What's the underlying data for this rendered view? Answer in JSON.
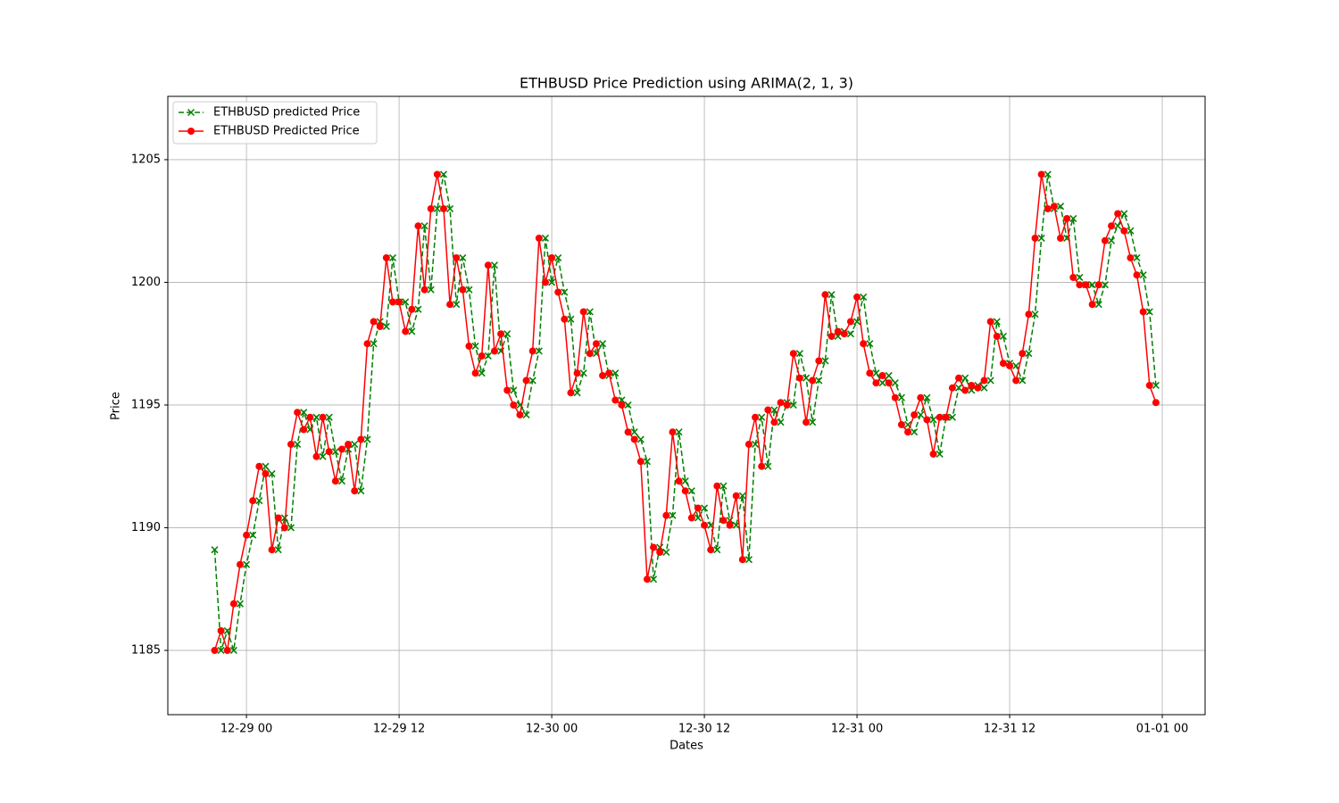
{
  "chart_data": {
    "type": "line",
    "title": "ETHBUSD Price Prediction using ARIMA(2, 1, 3)",
    "x_label": "Dates",
    "y_label": "Price",
    "grid": true,
    "legend": "upper left",
    "xlim": [
      "12-28 17:49",
      "01-01 03:22"
    ],
    "xticks": [
      {
        "value": "12-29 00:00",
        "label": "12-29 00"
      },
      {
        "value": "12-29 12:00",
        "label": "12-29 12"
      },
      {
        "value": "12-30 00:00",
        "label": "12-30 00"
      },
      {
        "value": "12-30 12:00",
        "label": "12-30 12"
      },
      {
        "value": "12-31 00:00",
        "label": "12-31 00"
      },
      {
        "value": "12-31 12:00",
        "label": "12-31 12"
      },
      {
        "value": "01-01 00:00",
        "label": "01-01 00"
      }
    ],
    "ylim": [
      1182.38,
      1207.58
    ],
    "yticks": [
      1185,
      1190,
      1195,
      1200,
      1205
    ],
    "x": [
      "12-28 21:30",
      "12-28 22:00",
      "12-28 22:30",
      "12-28 23:00",
      "12-28 23:30",
      "12-29 00:00",
      "12-29 00:30",
      "12-29 01:00",
      "12-29 01:30",
      "12-29 02:00",
      "12-29 02:30",
      "12-29 03:00",
      "12-29 03:30",
      "12-29 04:00",
      "12-29 04:30",
      "12-29 05:00",
      "12-29 05:30",
      "12-29 06:00",
      "12-29 06:30",
      "12-29 07:00",
      "12-29 07:30",
      "12-29 08:00",
      "12-29 08:30",
      "12-29 09:00",
      "12-29 09:30",
      "12-29 10:00",
      "12-29 10:30",
      "12-29 11:00",
      "12-29 11:30",
      "12-29 12:00",
      "12-29 12:30",
      "12-29 13:00",
      "12-29 13:30",
      "12-29 14:00",
      "12-29 14:30",
      "12-29 15:00",
      "12-29 15:30",
      "12-29 16:00",
      "12-29 16:30",
      "12-29 17:00",
      "12-29 17:30",
      "12-29 18:00",
      "12-29 18:30",
      "12-29 19:00",
      "12-29 19:30",
      "12-29 20:00",
      "12-29 20:30",
      "12-29 21:00",
      "12-29 21:30",
      "12-29 22:00",
      "12-29 22:30",
      "12-29 23:00",
      "12-29 23:30",
      "12-30 00:00",
      "12-30 00:30",
      "12-30 01:00",
      "12-30 01:30",
      "12-30 02:00",
      "12-30 02:30",
      "12-30 03:00",
      "12-30 03:30",
      "12-30 04:00",
      "12-30 04:30",
      "12-30 05:00",
      "12-30 05:30",
      "12-30 06:00",
      "12-30 06:30",
      "12-30 07:00",
      "12-30 07:30",
      "12-30 08:00",
      "12-30 08:30",
      "12-30 09:00",
      "12-30 09:30",
      "12-30 10:00",
      "12-30 10:30",
      "12-30 11:00",
      "12-30 11:30",
      "12-30 12:00",
      "12-30 12:30",
      "12-30 13:00",
      "12-30 13:30",
      "12-30 14:00",
      "12-30 14:30",
      "12-30 15:00",
      "12-30 15:30",
      "12-30 16:00",
      "12-30 16:30",
      "12-30 17:00",
      "12-30 17:30",
      "12-30 18:00",
      "12-30 18:30",
      "12-30 19:00",
      "12-30 19:30",
      "12-30 20:00",
      "12-30 20:30",
      "12-30 21:00",
      "12-30 21:30",
      "12-30 22:00",
      "12-30 22:30",
      "12-30 23:00",
      "12-30 23:30",
      "12-31 00:00",
      "12-31 00:30",
      "12-31 01:00",
      "12-31 01:30",
      "12-31 02:00",
      "12-31 02:30",
      "12-31 03:00",
      "12-31 03:30",
      "12-31 04:00",
      "12-31 04:30",
      "12-31 05:00",
      "12-31 05:30",
      "12-31 06:00",
      "12-31 06:30",
      "12-31 07:00",
      "12-31 07:30",
      "12-31 08:00",
      "12-31 08:30",
      "12-31 09:00",
      "12-31 09:30",
      "12-31 10:00",
      "12-31 10:30",
      "12-31 11:00",
      "12-31 11:30",
      "12-31 12:00",
      "12-31 12:30",
      "12-31 13:00",
      "12-31 13:30",
      "12-31 14:00",
      "12-31 14:30",
      "12-31 15:00",
      "12-31 15:30",
      "12-31 16:00",
      "12-31 16:30",
      "12-31 17:00",
      "12-31 17:30",
      "12-31 18:00",
      "12-31 18:30",
      "12-31 19:00",
      "12-31 19:30",
      "12-31 20:00",
      "12-31 20:30",
      "12-31 21:00",
      "12-31 21:30",
      "12-31 22:00",
      "12-31 22:30",
      "12-31 23:00",
      "12-31 23:30"
    ],
    "series": [
      {
        "name": "ETHBUSD predicted Price",
        "color": "#008000",
        "linestyle": "dashed",
        "marker": "x",
        "values": [
          1189.1,
          1185.0,
          1185.8,
          1185.0,
          1186.9,
          1188.5,
          1189.7,
          1191.1,
          1192.5,
          1192.2,
          1189.1,
          1190.4,
          1190.0,
          1193.4,
          1194.7,
          1194.0,
          1194.5,
          1192.9,
          1194.5,
          1193.1,
          1191.9,
          1193.2,
          1193.4,
          1191.5,
          1193.6,
          1197.5,
          1198.4,
          1198.2,
          1201.0,
          1199.2,
          1199.2,
          1198.0,
          1198.9,
          1202.3,
          1199.7,
          1203.0,
          1204.4,
          1203.0,
          1199.1,
          1201.0,
          1199.7,
          1197.4,
          1196.3,
          1197.0,
          1200.7,
          1197.2,
          1197.9,
          1195.6,
          1195.0,
          1194.6,
          1196.0,
          1197.2,
          1201.8,
          1200.0,
          1201.0,
          1199.6,
          1198.5,
          1195.5,
          1196.3,
          1198.8,
          1197.1,
          1197.5,
          1196.2,
          1196.3,
          1195.2,
          1195.0,
          1193.9,
          1193.6,
          1192.7,
          1187.9,
          1189.2,
          1189.0,
          1190.5,
          1193.9,
          1191.9,
          1191.5,
          1190.4,
          1190.8,
          1190.1,
          1189.1,
          1191.7,
          1190.3,
          1190.1,
          1191.3,
          1188.7,
          1193.4,
          1194.5,
          1192.5,
          1194.8,
          1194.3,
          1195.1,
          1195.0,
          1197.1,
          1196.1,
          1194.3,
          1196.0,
          1196.8,
          1199.5,
          1197.8,
          1198.0,
          1197.9,
          1198.4,
          1199.4,
          1197.5,
          1196.3,
          1195.9,
          1196.2,
          1195.9,
          1195.3,
          1194.2,
          1193.9,
          1194.6,
          1195.3,
          1194.4,
          1193.0,
          1194.5,
          1194.5,
          1195.7,
          1196.1,
          1195.6,
          1195.8,
          1195.7,
          1196.0,
          1198.4,
          1197.8,
          1196.7,
          1196.6,
          1196.0,
          1197.1,
          1198.7,
          1201.8,
          1204.4,
          1203.0,
          1203.1,
          1201.8,
          1202.6,
          1200.2,
          1199.9,
          1199.9,
          1199.1,
          1199.9,
          1201.7,
          1202.3,
          1202.8,
          1202.1,
          1201.0,
          1200.3,
          1198.8,
          1195.8
        ]
      },
      {
        "name": "ETHBUSD Predicted Price",
        "color": "#ff0000",
        "linestyle": "solid",
        "marker": "o",
        "values": [
          1185.0,
          1185.8,
          1185.0,
          1186.9,
          1188.5,
          1189.7,
          1191.1,
          1192.5,
          1192.2,
          1189.1,
          1190.4,
          1190.0,
          1193.4,
          1194.7,
          1194.0,
          1194.5,
          1192.9,
          1194.5,
          1193.1,
          1191.9,
          1193.2,
          1193.4,
          1191.5,
          1193.6,
          1197.5,
          1198.4,
          1198.2,
          1201.0,
          1199.2,
          1199.2,
          1198.0,
          1198.9,
          1202.3,
          1199.7,
          1203.0,
          1204.4,
          1203.0,
          1199.1,
          1201.0,
          1199.7,
          1197.4,
          1196.3,
          1197.0,
          1200.7,
          1197.2,
          1197.9,
          1195.6,
          1195.0,
          1194.6,
          1196.0,
          1197.2,
          1201.8,
          1200.0,
          1201.0,
          1199.6,
          1198.5,
          1195.5,
          1196.3,
          1198.8,
          1197.1,
          1197.5,
          1196.2,
          1196.3,
          1195.2,
          1195.0,
          1193.9,
          1193.6,
          1192.7,
          1187.9,
          1189.2,
          1189.0,
          1190.5,
          1193.9,
          1191.9,
          1191.5,
          1190.4,
          1190.8,
          1190.1,
          1189.1,
          1191.7,
          1190.3,
          1190.1,
          1191.3,
          1188.7,
          1193.4,
          1194.5,
          1192.5,
          1194.8,
          1194.3,
          1195.1,
          1195.0,
          1197.1,
          1196.1,
          1194.3,
          1196.0,
          1196.8,
          1199.5,
          1197.8,
          1198.0,
          1197.9,
          1198.4,
          1199.4,
          1197.5,
          1196.3,
          1195.9,
          1196.2,
          1195.9,
          1195.3,
          1194.2,
          1193.9,
          1194.6,
          1195.3,
          1194.4,
          1193.0,
          1194.5,
          1194.5,
          1195.7,
          1196.1,
          1195.6,
          1195.8,
          1195.7,
          1196.0,
          1198.4,
          1197.8,
          1196.7,
          1196.6,
          1196.0,
          1197.1,
          1198.7,
          1201.8,
          1204.4,
          1203.0,
          1203.1,
          1201.8,
          1202.6,
          1200.2,
          1199.9,
          1199.9,
          1199.1,
          1199.9,
          1201.7,
          1202.3,
          1202.8,
          1202.1,
          1201.0,
          1200.3,
          1198.8,
          1195.8,
          1195.1
        ]
      }
    ]
  }
}
